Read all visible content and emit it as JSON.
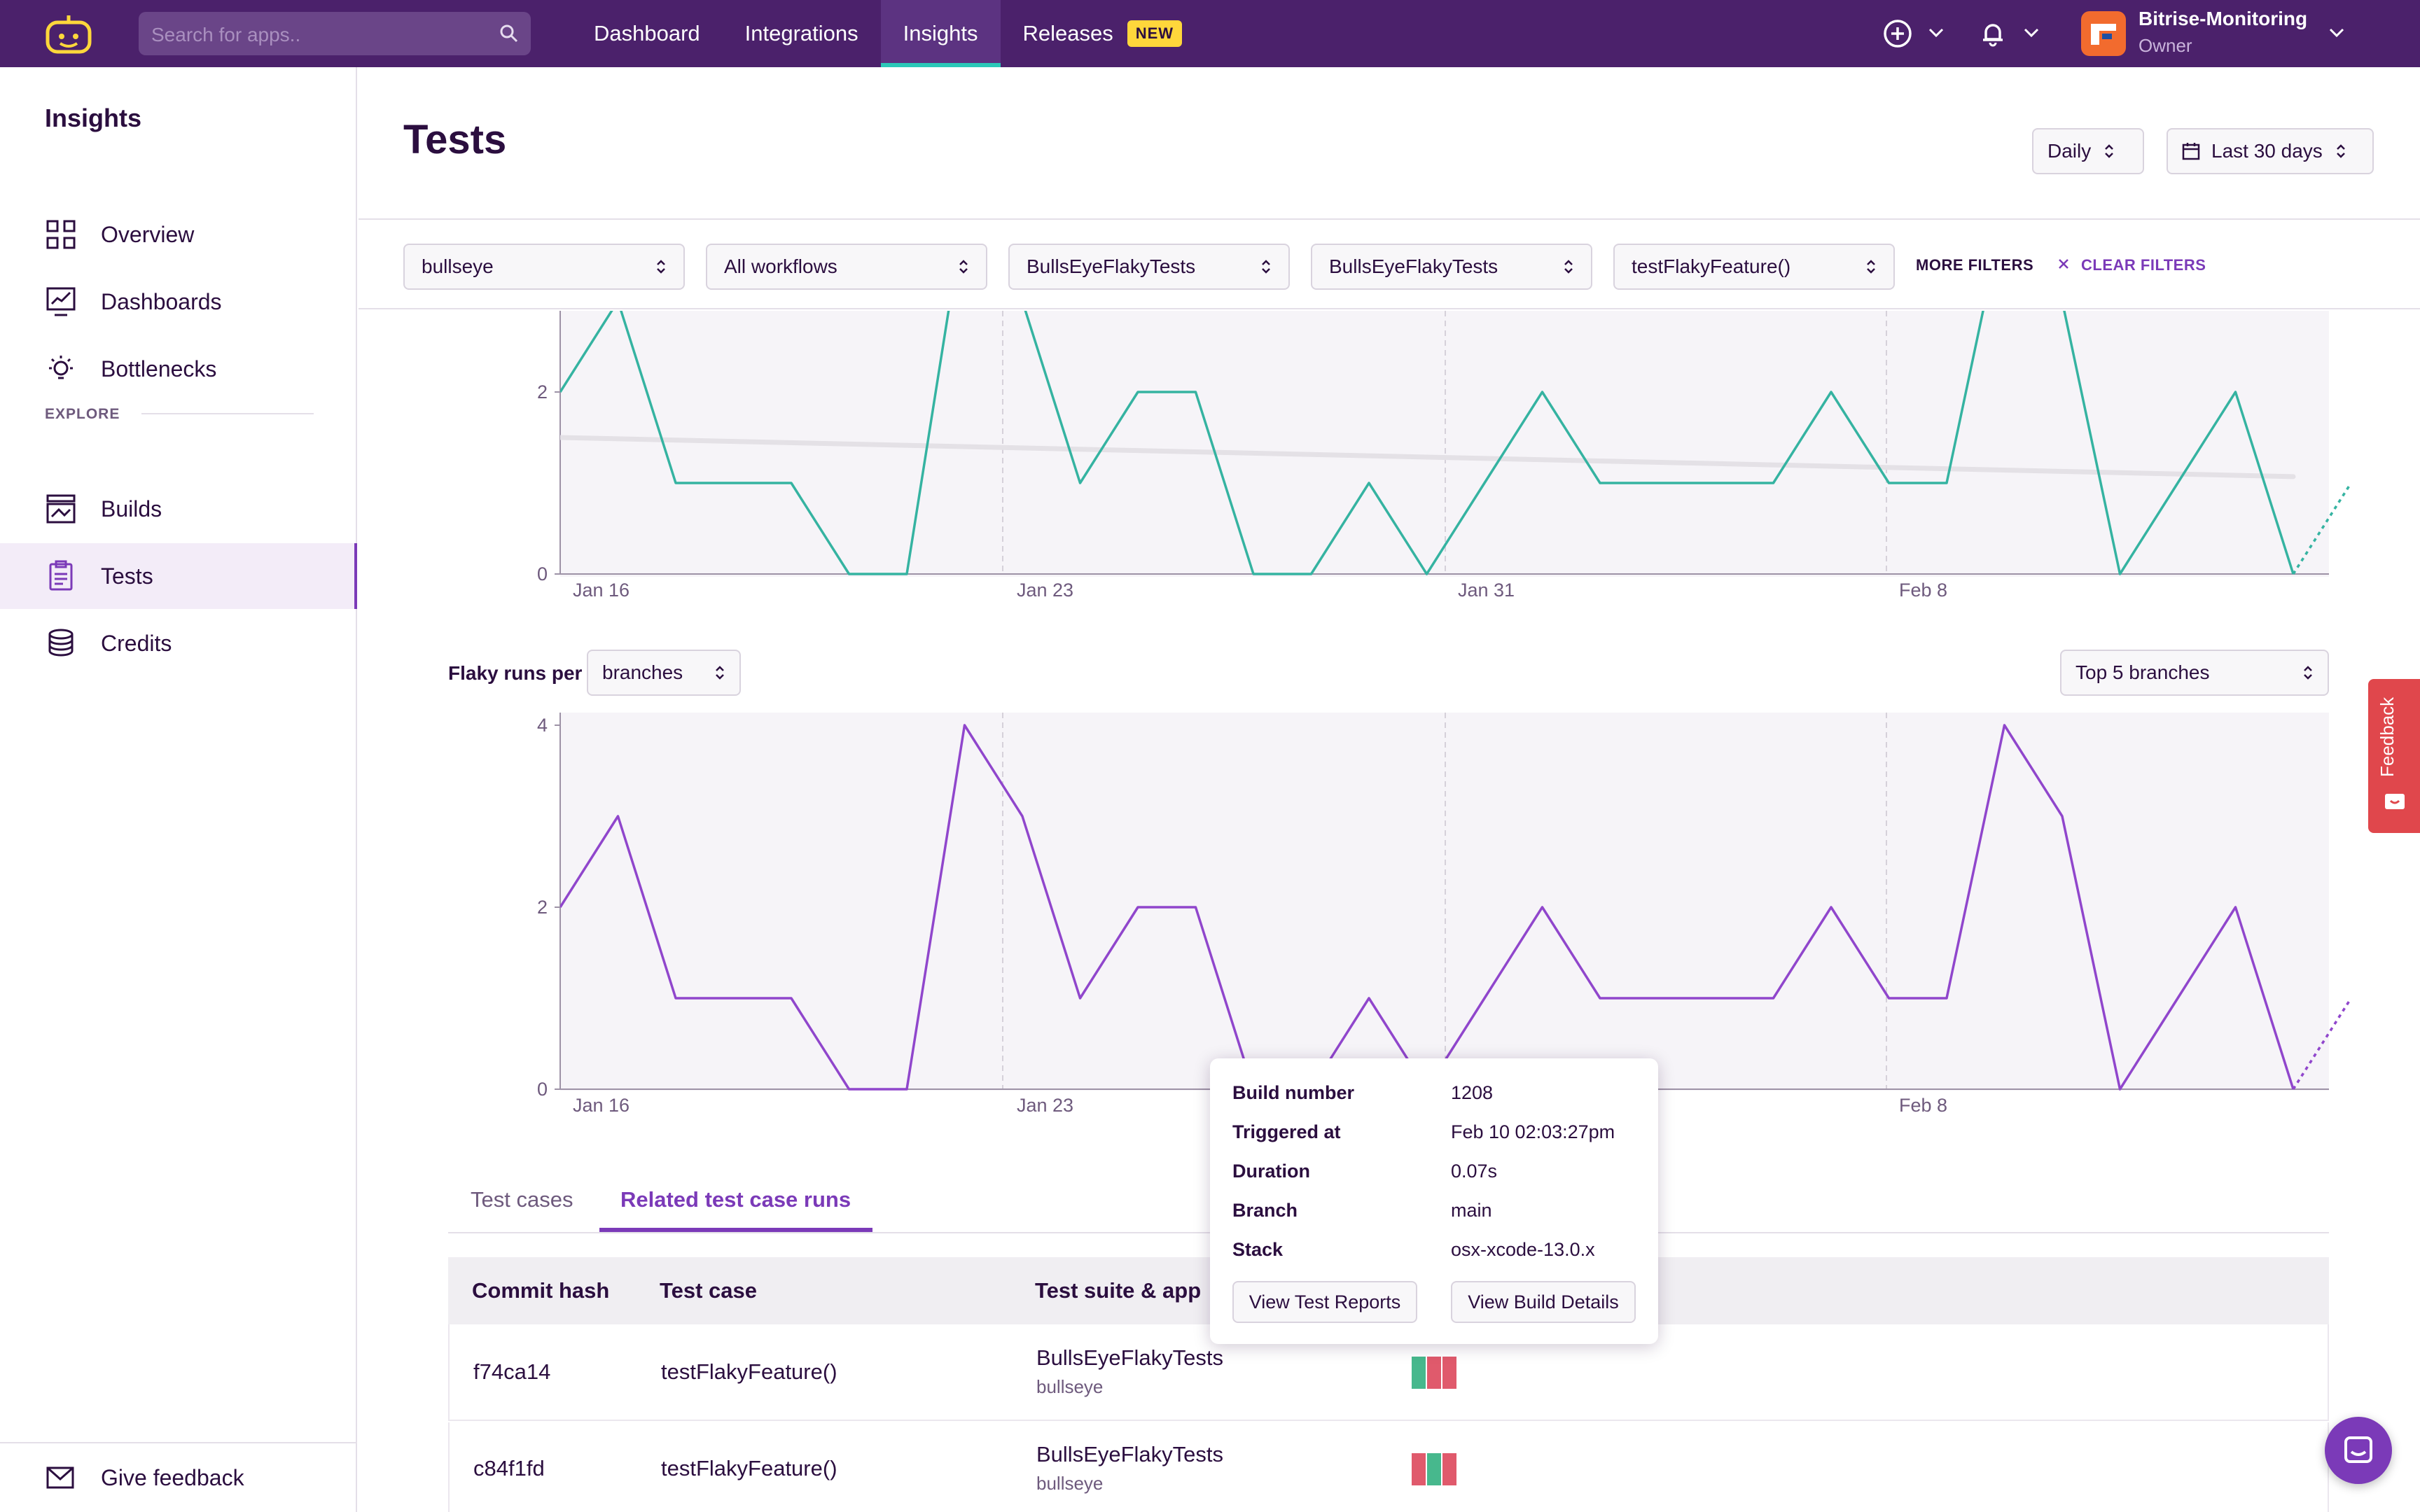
{
  "topbar": {
    "search_placeholder": "Search for apps..",
    "nav": [
      {
        "label": "Dashboard"
      },
      {
        "label": "Integrations"
      },
      {
        "label": "Insights"
      },
      {
        "label": "Releases"
      }
    ],
    "new_badge": "NEW",
    "account_name": "Bitrise-Monitoring",
    "account_role": "Owner"
  },
  "sidebar": {
    "title": "Insights",
    "items": [
      {
        "label": "Overview",
        "icon": "grid-icon"
      },
      {
        "label": "Dashboards",
        "icon": "chart-icon"
      },
      {
        "label": "Bottlenecks",
        "icon": "bulb-icon"
      }
    ],
    "explore_label": "EXPLORE",
    "explore_items": [
      {
        "label": "Builds",
        "icon": "builds-icon"
      },
      {
        "label": "Tests",
        "icon": "clipboard-icon"
      },
      {
        "label": "Credits",
        "icon": "coins-icon"
      }
    ],
    "feedback_label": "Give feedback"
  },
  "header": {
    "title": "Tests",
    "granularity": "Daily",
    "date_range": "Last 30 days"
  },
  "filters": {
    "app": "bullseye",
    "workflow": "All workflows",
    "suite": "BullsEyeFlakyTests",
    "target": "BullsEyeFlakyTests",
    "test_case": "testFlakyFeature()",
    "more_filters": "MORE FILTERS",
    "clear_filters": "CLEAR FILTERS"
  },
  "controls": {
    "flaky_label": "Flaky runs per",
    "group_by": "branches",
    "top_n": "Top 5 branches"
  },
  "chart_data": [
    {
      "type": "line",
      "title": "",
      "x_ticks": [
        "Jan 16",
        "Jan 23",
        "Jan 31",
        "Feb 8"
      ],
      "y_ticks": [
        0,
        2
      ],
      "ylim": [
        0,
        4
      ],
      "series": [
        {
          "color": "#35b3a1",
          "values": [
            2,
            3,
            1,
            1,
            1,
            0,
            0,
            4,
            3,
            1,
            2,
            2,
            0,
            0,
            1,
            0,
            1,
            2,
            1,
            1,
            1,
            1,
            2,
            1,
            1,
            4,
            3,
            0,
            1,
            2,
            0
          ],
          "projected_next": 1
        }
      ],
      "trend": {
        "start": 1.5,
        "end": 1.07,
        "color": "#e4e1e6"
      }
    },
    {
      "type": "line",
      "title": "",
      "x_ticks": [
        "Jan 16",
        "Jan 23",
        "Feb 8"
      ],
      "y_ticks": [
        0,
        2,
        4
      ],
      "ylim": [
        0,
        4
      ],
      "series": [
        {
          "color": "#9046cc",
          "values": [
            2,
            3,
            1,
            1,
            1,
            0,
            0,
            4,
            3,
            1,
            2,
            2,
            0,
            0,
            1,
            0,
            1,
            2,
            1,
            1,
            1,
            1,
            2,
            1,
            1,
            4,
            3,
            0,
            1,
            2,
            0
          ],
          "projected_next": 1
        }
      ]
    }
  ],
  "tabs": {
    "test_cases": "Test cases",
    "related_runs": "Related test case runs"
  },
  "table": {
    "headers": [
      "Commit hash",
      "Test case",
      "Test suite & app"
    ],
    "rows": [
      {
        "commit": "f74ca14",
        "test_case": "testFlakyFeature()",
        "suite": "BullsEyeFlakyTests",
        "app": "bullseye"
      },
      {
        "commit": "c84f1fd",
        "test_case": "testFlakyFeature()",
        "suite": "BullsEyeFlakyTests",
        "app": "bullseye"
      }
    ]
  },
  "tooltip": {
    "rows": [
      {
        "label": "Build number",
        "value": "1208"
      },
      {
        "label": "Triggered at",
        "value": "Feb 10 02:03:27pm"
      },
      {
        "label": "Duration",
        "value": "0.07s"
      },
      {
        "label": "Branch",
        "value": "main"
      },
      {
        "label": "Stack",
        "value": "osx-xcode-13.0.x"
      }
    ],
    "view_reports": "View Test Reports",
    "view_build": "View Build Details"
  },
  "feedback_tab": "Feedback",
  "colors": {
    "topbar": "#4b216b",
    "accent": "#7b3ab8",
    "teal": "#35b3a1",
    "purple_line": "#9046cc",
    "pass": "#47b88d",
    "fail": "#e05a6c"
  }
}
